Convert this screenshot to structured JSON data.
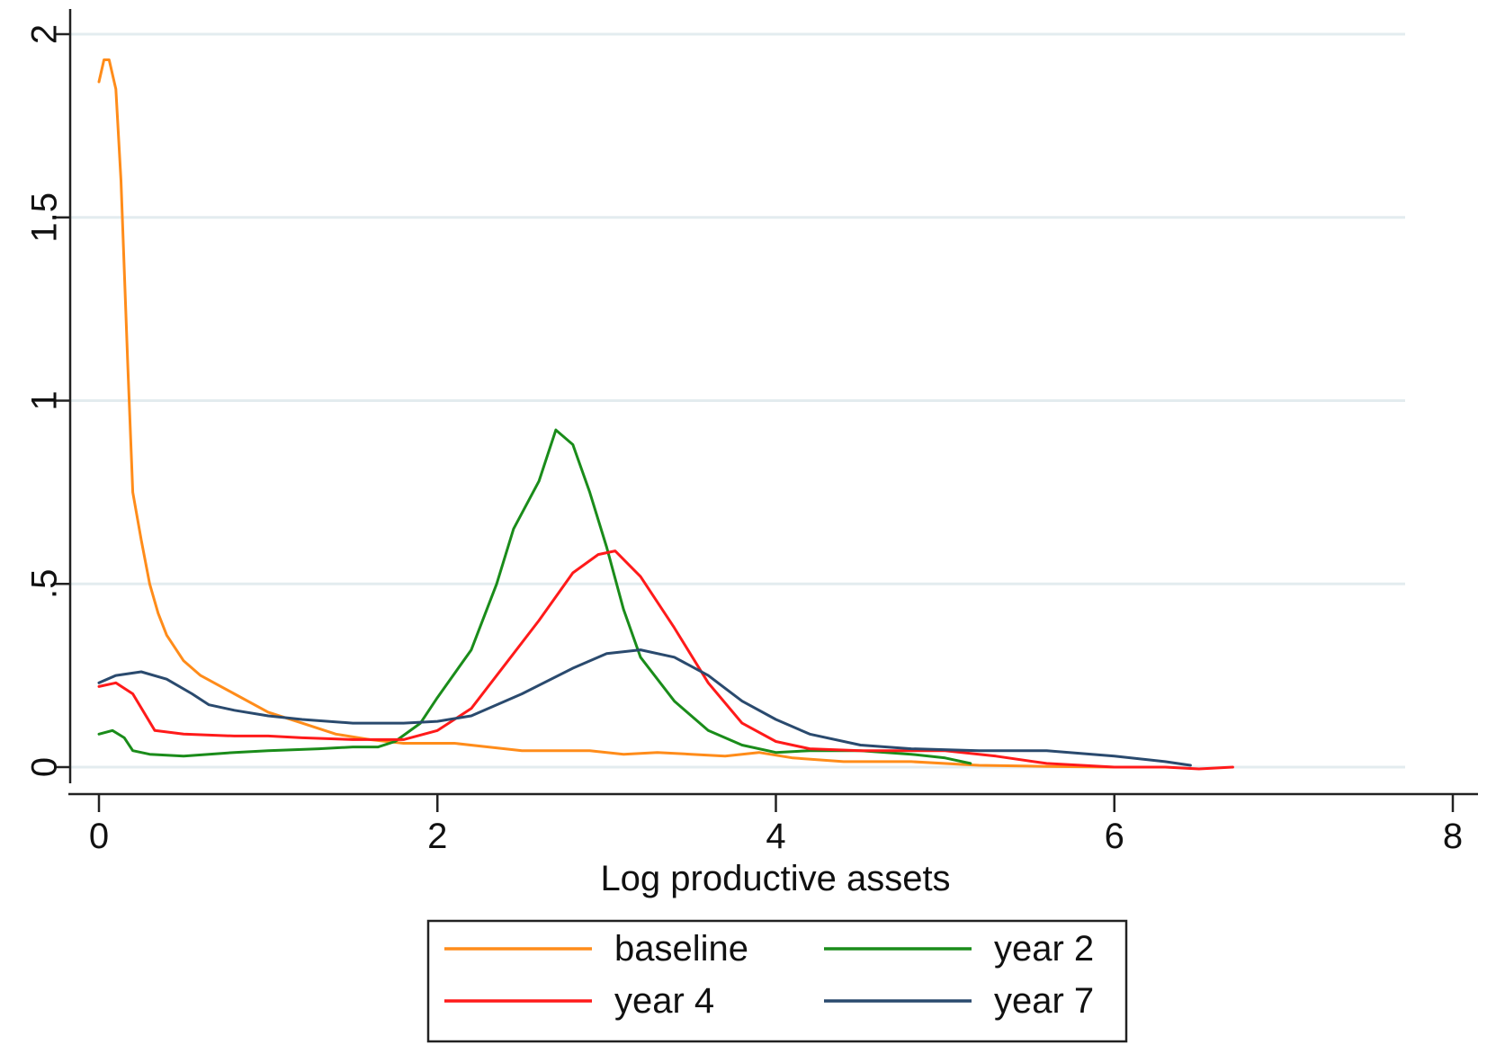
{
  "chart_data": {
    "type": "line",
    "title": "",
    "xlabel": "Log productive assets",
    "ylabel": "",
    "xlim": [
      0,
      8
    ],
    "ylim": [
      0,
      2
    ],
    "xticks": [
      0,
      2,
      4,
      6,
      8
    ],
    "xtick_labels": [
      "0",
      "2",
      "4",
      "6",
      "8"
    ],
    "yticks": [
      0,
      0.5,
      1,
      1.5,
      2
    ],
    "ytick_labels": [
      "0",
      ".5",
      "1",
      "1.5",
      "2"
    ],
    "grid": true,
    "legend_position": "bottom",
    "series": [
      {
        "name": "baseline",
        "color": "#ff8c1a",
        "points": [
          [
            0,
            1.87
          ],
          [
            0.03,
            1.93
          ],
          [
            0.06,
            1.93
          ],
          [
            0.1,
            1.85
          ],
          [
            0.13,
            1.6
          ],
          [
            0.17,
            1.1
          ],
          [
            0.2,
            0.75
          ],
          [
            0.25,
            0.62
          ],
          [
            0.3,
            0.5
          ],
          [
            0.35,
            0.42
          ],
          [
            0.4,
            0.36
          ],
          [
            0.5,
            0.29
          ],
          [
            0.6,
            0.25
          ],
          [
            0.8,
            0.2
          ],
          [
            1.0,
            0.15
          ],
          [
            1.2,
            0.12
          ],
          [
            1.4,
            0.09
          ],
          [
            1.6,
            0.075
          ],
          [
            1.8,
            0.065
          ],
          [
            2.0,
            0.065
          ],
          [
            2.1,
            0.065
          ],
          [
            2.3,
            0.055
          ],
          [
            2.5,
            0.045
          ],
          [
            2.7,
            0.045
          ],
          [
            2.9,
            0.045
          ],
          [
            3.1,
            0.035
          ],
          [
            3.3,
            0.04
          ],
          [
            3.5,
            0.035
          ],
          [
            3.7,
            0.03
          ],
          [
            3.9,
            0.04
          ],
          [
            4.1,
            0.025
          ],
          [
            4.4,
            0.015
          ],
          [
            4.8,
            0.015
          ],
          [
            5.2,
            0.005
          ],
          [
            5.6,
            0.002
          ],
          [
            6.0,
            0.0
          ]
        ]
      },
      {
        "name": "year 2",
        "color": "#1a8c1a",
        "points": [
          [
            0,
            0.09
          ],
          [
            0.08,
            0.1
          ],
          [
            0.15,
            0.08
          ],
          [
            0.2,
            0.045
          ],
          [
            0.3,
            0.035
          ],
          [
            0.5,
            0.03
          ],
          [
            0.8,
            0.04
          ],
          [
            1.0,
            0.045
          ],
          [
            1.3,
            0.05
          ],
          [
            1.5,
            0.055
          ],
          [
            1.65,
            0.055
          ],
          [
            1.75,
            0.07
          ],
          [
            1.9,
            0.12
          ],
          [
            2.0,
            0.19
          ],
          [
            2.2,
            0.32
          ],
          [
            2.35,
            0.5
          ],
          [
            2.45,
            0.65
          ],
          [
            2.6,
            0.78
          ],
          [
            2.7,
            0.92
          ],
          [
            2.8,
            0.88
          ],
          [
            2.9,
            0.75
          ],
          [
            3.0,
            0.6
          ],
          [
            3.1,
            0.43
          ],
          [
            3.2,
            0.3
          ],
          [
            3.4,
            0.18
          ],
          [
            3.6,
            0.1
          ],
          [
            3.8,
            0.06
          ],
          [
            4.0,
            0.04
          ],
          [
            4.2,
            0.045
          ],
          [
            4.5,
            0.045
          ],
          [
            4.8,
            0.035
          ],
          [
            5.0,
            0.025
          ],
          [
            5.15,
            0.01
          ]
        ]
      },
      {
        "name": "year 4",
        "color": "#ff1a1a",
        "points": [
          [
            0,
            0.22
          ],
          [
            0.1,
            0.23
          ],
          [
            0.2,
            0.2
          ],
          [
            0.33,
            0.1
          ],
          [
            0.5,
            0.09
          ],
          [
            0.8,
            0.085
          ],
          [
            1.0,
            0.085
          ],
          [
            1.2,
            0.08
          ],
          [
            1.5,
            0.075
          ],
          [
            1.8,
            0.075
          ],
          [
            2.0,
            0.1
          ],
          [
            2.2,
            0.16
          ],
          [
            2.4,
            0.28
          ],
          [
            2.6,
            0.4
          ],
          [
            2.8,
            0.53
          ],
          [
            2.95,
            0.58
          ],
          [
            3.05,
            0.59
          ],
          [
            3.2,
            0.52
          ],
          [
            3.4,
            0.38
          ],
          [
            3.6,
            0.23
          ],
          [
            3.8,
            0.12
          ],
          [
            4.0,
            0.07
          ],
          [
            4.2,
            0.05
          ],
          [
            4.5,
            0.045
          ],
          [
            5.0,
            0.045
          ],
          [
            5.3,
            0.03
          ],
          [
            5.6,
            0.01
          ],
          [
            6.0,
            0.0
          ],
          [
            6.3,
            0.0
          ],
          [
            6.5,
            -0.005
          ],
          [
            6.7,
            0.0
          ]
        ]
      },
      {
        "name": "year 7",
        "color": "#2a4a6e",
        "points": [
          [
            0,
            0.23
          ],
          [
            0.1,
            0.25
          ],
          [
            0.25,
            0.26
          ],
          [
            0.4,
            0.24
          ],
          [
            0.55,
            0.2
          ],
          [
            0.65,
            0.17
          ],
          [
            0.8,
            0.155
          ],
          [
            1.0,
            0.14
          ],
          [
            1.2,
            0.13
          ],
          [
            1.5,
            0.12
          ],
          [
            1.8,
            0.12
          ],
          [
            2.0,
            0.125
          ],
          [
            2.2,
            0.14
          ],
          [
            2.5,
            0.2
          ],
          [
            2.8,
            0.27
          ],
          [
            3.0,
            0.31
          ],
          [
            3.2,
            0.32
          ],
          [
            3.4,
            0.3
          ],
          [
            3.6,
            0.25
          ],
          [
            3.8,
            0.18
          ],
          [
            4.0,
            0.13
          ],
          [
            4.2,
            0.09
          ],
          [
            4.5,
            0.06
          ],
          [
            4.8,
            0.05
          ],
          [
            5.2,
            0.045
          ],
          [
            5.6,
            0.045
          ],
          [
            6.0,
            0.03
          ],
          [
            6.3,
            0.015
          ],
          [
            6.45,
            0.005
          ]
        ]
      }
    ]
  }
}
